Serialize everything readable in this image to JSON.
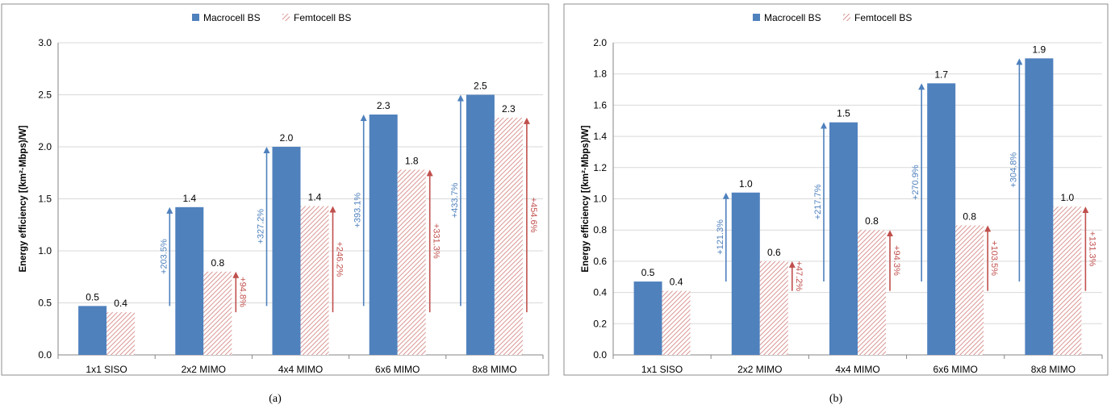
{
  "chart_data": [
    {
      "type": "bar",
      "caption": "(a)",
      "ylabel": "Energy efficiency [(km²·Mbps)/W]",
      "ylim": [
        0,
        3.0
      ],
      "yticks": [
        "0.0",
        "0.5",
        "1.0",
        "1.5",
        "2.0",
        "2.5",
        "3.0"
      ],
      "categories": [
        "1x1 SISO",
        "2x2 MIMO",
        "4x4 MIMO",
        "6x6 MIMO",
        "8x8 MIMO"
      ],
      "legend_position": "top",
      "grid": true,
      "series": [
        {
          "name": "Macrocell BS",
          "color": "#4f81bd",
          "pattern": "solid",
          "values": [
            0.47,
            1.42,
            2.0,
            2.31,
            2.5
          ],
          "labels": [
            "0.5",
            "1.4",
            "2.0",
            "2.3",
            "2.5"
          ]
        },
        {
          "name": "Femtocell BS",
          "color": "#c0504d",
          "pattern": "hatched",
          "values": [
            0.41,
            0.8,
            1.43,
            1.78,
            2.28
          ],
          "labels": [
            "0.4",
            "0.8",
            "1.4",
            "1.8",
            "2.3"
          ]
        }
      ],
      "annotations": [
        {
          "category": 1,
          "series": 0,
          "text": "+203.5%",
          "from": 0.47,
          "to": 1.42
        },
        {
          "category": 1,
          "series": 1,
          "text": "+94.8%",
          "from": 0.41,
          "to": 0.8
        },
        {
          "category": 2,
          "series": 0,
          "text": "+327.2%",
          "from": 0.47,
          "to": 2.0
        },
        {
          "category": 2,
          "series": 1,
          "text": "+246.2%",
          "from": 0.41,
          "to": 1.43
        },
        {
          "category": 3,
          "series": 0,
          "text": "+393.1%",
          "from": 0.47,
          "to": 2.31
        },
        {
          "category": 3,
          "series": 1,
          "text": "+331.3%",
          "from": 0.41,
          "to": 1.78
        },
        {
          "category": 4,
          "series": 0,
          "text": "+433.7%",
          "from": 0.47,
          "to": 2.5
        },
        {
          "category": 4,
          "series": 1,
          "text": "+454.6%",
          "from": 0.41,
          "to": 2.28
        }
      ]
    },
    {
      "type": "bar",
      "caption": "(b)",
      "ylabel": "Energy efficiency [(km²·Mbps)/W]",
      "ylim": [
        0,
        2.0
      ],
      "yticks": [
        "0.0",
        "0.2",
        "0.4",
        "0.6",
        "0.8",
        "1.0",
        "1.2",
        "1.4",
        "1.6",
        "1.8",
        "2.0"
      ],
      "categories": [
        "1x1 SISO",
        "2x2 MIMO",
        "4x4 MIMO",
        "6x6 MIMO",
        "8x8 MIMO"
      ],
      "legend_position": "top",
      "grid": true,
      "series": [
        {
          "name": "Macrocell BS",
          "color": "#4f81bd",
          "pattern": "solid",
          "values": [
            0.47,
            1.04,
            1.49,
            1.74,
            1.9
          ],
          "labels": [
            "0.5",
            "1.0",
            "1.5",
            "1.7",
            "1.9"
          ]
        },
        {
          "name": "Femtocell BS",
          "color": "#c0504d",
          "pattern": "hatched",
          "values": [
            0.41,
            0.6,
            0.8,
            0.83,
            0.95
          ],
          "labels": [
            "0.4",
            "0.6",
            "0.8",
            "0.8",
            "1.0"
          ]
        }
      ],
      "annotations": [
        {
          "category": 1,
          "series": 0,
          "text": "+121.3%",
          "from": 0.47,
          "to": 1.04
        },
        {
          "category": 1,
          "series": 1,
          "text": "+47.2%",
          "from": 0.41,
          "to": 0.6
        },
        {
          "category": 2,
          "series": 0,
          "text": "+217.7%",
          "from": 0.47,
          "to": 1.49
        },
        {
          "category": 2,
          "series": 1,
          "text": "+94.3%",
          "from": 0.41,
          "to": 0.8
        },
        {
          "category": 3,
          "series": 0,
          "text": "+270.9%",
          "from": 0.47,
          "to": 1.74
        },
        {
          "category": 3,
          "series": 1,
          "text": "+103.5%",
          "from": 0.41,
          "to": 0.83
        },
        {
          "category": 4,
          "series": 0,
          "text": "+304.8%",
          "from": 0.47,
          "to": 1.9
        },
        {
          "category": 4,
          "series": 1,
          "text": "+131.3%",
          "from": 0.41,
          "to": 0.95
        }
      ]
    }
  ]
}
